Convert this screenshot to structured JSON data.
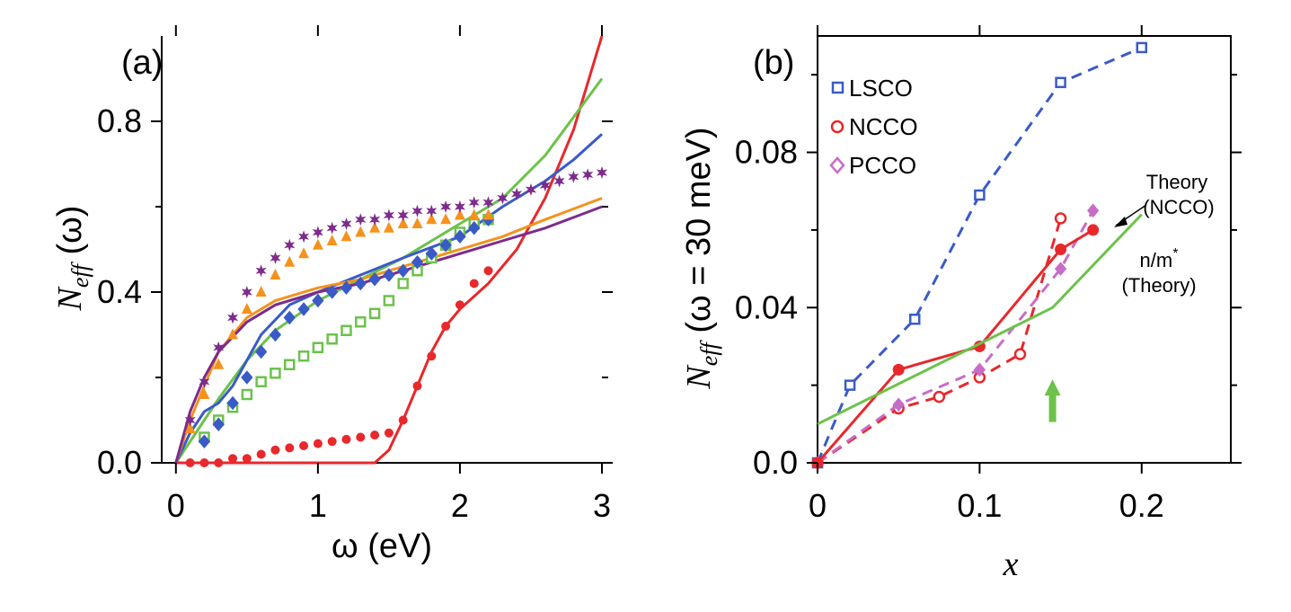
{
  "chart_data": [
    {
      "panel_label": "(a)",
      "type": "line",
      "xlabel": "ω (eV)",
      "ylabel_main": "N",
      "ylabel_sub": "eff",
      "ylabel_arg": " (ω)",
      "xlim": [
        -0.1,
        3.0
      ],
      "ylim": [
        0.0,
        1.0
      ],
      "xticks": [
        0,
        1,
        2,
        3
      ],
      "xtick_labels": [
        "0",
        "1",
        "2",
        "3"
      ],
      "yticks": [
        0.0,
        0.4,
        0.8
      ],
      "ytick_labels": [
        "0.0",
        "0.4",
        "0.8"
      ],
      "series": [
        {
          "name": "red-line",
          "kind": "line",
          "color": "#e8282b",
          "x": [
            0.0,
            0.5,
            1.0,
            1.4,
            1.5,
            1.6,
            1.7,
            1.8,
            1.9,
            2.0,
            2.2,
            2.4,
            2.6,
            2.8,
            3.0
          ],
          "y": [
            0.0,
            0.0,
            0.0,
            0.0,
            0.03,
            0.1,
            0.18,
            0.26,
            0.32,
            0.36,
            0.42,
            0.5,
            0.62,
            0.78,
            1.0
          ]
        },
        {
          "name": "green-line",
          "kind": "line",
          "color": "#6cc24a",
          "x": [
            0.0,
            0.1,
            0.2,
            0.3,
            0.5,
            0.7,
            1.0,
            1.3,
            1.6,
            2.0,
            2.3,
            2.6,
            2.8,
            3.0
          ],
          "y": [
            0.0,
            0.05,
            0.1,
            0.15,
            0.24,
            0.31,
            0.38,
            0.43,
            0.48,
            0.56,
            0.62,
            0.72,
            0.81,
            0.9
          ]
        },
        {
          "name": "blue-line",
          "kind": "line",
          "color": "#3a5bc7",
          "x": [
            0.0,
            0.1,
            0.2,
            0.3,
            0.4,
            0.6,
            0.8,
            1.0,
            1.3,
            1.6,
            2.0,
            2.3,
            2.6,
            2.8,
            3.0
          ],
          "y": [
            0.0,
            0.07,
            0.12,
            0.14,
            0.18,
            0.3,
            0.37,
            0.4,
            0.44,
            0.48,
            0.53,
            0.6,
            0.66,
            0.71,
            0.77
          ]
        },
        {
          "name": "orange-line",
          "kind": "line",
          "color": "#f5921e",
          "x": [
            0.0,
            0.1,
            0.2,
            0.3,
            0.5,
            0.7,
            1.0,
            1.3,
            1.6,
            2.0,
            2.3,
            2.6,
            3.0
          ],
          "y": [
            0.0,
            0.1,
            0.18,
            0.26,
            0.34,
            0.38,
            0.41,
            0.43,
            0.46,
            0.5,
            0.53,
            0.57,
            0.62
          ]
        },
        {
          "name": "purple-line",
          "kind": "line",
          "color": "#7d2b8c",
          "x": [
            0.0,
            0.1,
            0.2,
            0.3,
            0.5,
            0.7,
            1.0,
            1.3,
            1.6,
            2.0,
            2.3,
            2.6,
            3.0
          ],
          "y": [
            0.0,
            0.12,
            0.2,
            0.26,
            0.33,
            0.37,
            0.4,
            0.42,
            0.45,
            0.49,
            0.52,
            0.55,
            0.6
          ]
        },
        {
          "name": "red-dots",
          "kind": "points",
          "marker": "circle",
          "color": "#e8282b",
          "x": [
            0.1,
            0.2,
            0.3,
            0.4,
            0.5,
            0.6,
            0.7,
            0.8,
            0.9,
            1.0,
            1.1,
            1.2,
            1.3,
            1.4,
            1.5,
            1.6,
            1.7,
            1.8,
            1.9,
            2.0,
            2.1,
            2.2
          ],
          "y": [
            0.0,
            0.0,
            0.0,
            0.01,
            0.01,
            0.02,
            0.03,
            0.035,
            0.04,
            0.045,
            0.05,
            0.055,
            0.06,
            0.065,
            0.07,
            0.1,
            0.18,
            0.25,
            0.32,
            0.37,
            0.42,
            0.45
          ]
        },
        {
          "name": "green-squares",
          "kind": "points",
          "marker": "square",
          "color": "#6cc24a",
          "x": [
            0.2,
            0.3,
            0.4,
            0.5,
            0.6,
            0.7,
            0.8,
            0.9,
            1.0,
            1.1,
            1.2,
            1.3,
            1.4,
            1.5,
            1.6,
            1.7,
            1.8,
            1.9,
            2.0,
            2.1,
            2.2
          ],
          "y": [
            0.06,
            0.1,
            0.13,
            0.16,
            0.19,
            0.21,
            0.23,
            0.25,
            0.27,
            0.29,
            0.31,
            0.33,
            0.35,
            0.38,
            0.42,
            0.45,
            0.48,
            0.51,
            0.54,
            0.56,
            0.57
          ]
        },
        {
          "name": "blue-diamonds",
          "kind": "points",
          "marker": "diamond",
          "color": "#3a5bc7",
          "x": [
            0.2,
            0.3,
            0.4,
            0.5,
            0.6,
            0.7,
            0.8,
            0.9,
            1.0,
            1.1,
            1.2,
            1.3,
            1.4,
            1.5,
            1.6,
            1.7,
            1.8,
            1.9,
            2.0,
            2.1,
            2.2
          ],
          "y": [
            0.05,
            0.09,
            0.14,
            0.2,
            0.26,
            0.3,
            0.34,
            0.36,
            0.38,
            0.4,
            0.41,
            0.42,
            0.43,
            0.44,
            0.45,
            0.47,
            0.49,
            0.51,
            0.53,
            0.55,
            0.57
          ]
        },
        {
          "name": "orange-triangles",
          "kind": "points",
          "marker": "triangle",
          "color": "#f5921e",
          "x": [
            0.1,
            0.2,
            0.3,
            0.4,
            0.5,
            0.6,
            0.7,
            0.8,
            0.9,
            1.0,
            1.1,
            1.2,
            1.3,
            1.4,
            1.5,
            1.6,
            1.7,
            1.8,
            1.9,
            2.0,
            2.1,
            2.2
          ],
          "y": [
            0.08,
            0.16,
            0.23,
            0.3,
            0.36,
            0.4,
            0.44,
            0.47,
            0.49,
            0.51,
            0.52,
            0.53,
            0.54,
            0.55,
            0.55,
            0.56,
            0.56,
            0.57,
            0.57,
            0.58,
            0.58,
            0.58
          ]
        },
        {
          "name": "purple-stars",
          "kind": "points",
          "marker": "star",
          "color": "#7d2b8c",
          "x": [
            0.1,
            0.2,
            0.3,
            0.4,
            0.5,
            0.6,
            0.7,
            0.8,
            0.9,
            1.0,
            1.1,
            1.2,
            1.3,
            1.4,
            1.5,
            1.6,
            1.7,
            1.8,
            1.9,
            2.0,
            2.1,
            2.2,
            2.3,
            2.4,
            2.5,
            2.6,
            2.7,
            2.8,
            2.9,
            3.0
          ],
          "y": [
            0.1,
            0.19,
            0.27,
            0.34,
            0.4,
            0.45,
            0.48,
            0.51,
            0.53,
            0.54,
            0.55,
            0.56,
            0.57,
            0.57,
            0.58,
            0.58,
            0.59,
            0.59,
            0.6,
            0.6,
            0.61,
            0.61,
            0.62,
            0.63,
            0.64,
            0.65,
            0.66,
            0.67,
            0.675,
            0.68
          ]
        }
      ]
    },
    {
      "panel_label": "(b)",
      "type": "line",
      "xlabel": "x",
      "ylabel_main": "N",
      "ylabel_sub": "eff",
      "ylabel_arg": " (ω = 30 meV)",
      "xlim": [
        0.0,
        0.255
      ],
      "ylim": [
        0.0,
        0.11
      ],
      "xticks": [
        0,
        0.1,
        0.2
      ],
      "xtick_labels": [
        "0",
        "0.1",
        "0.2"
      ],
      "yticks": [
        0.0,
        0.04,
        0.08
      ],
      "ytick_labels": [
        "0.0",
        "0.04",
        "0.08"
      ],
      "legend": [
        {
          "label": "LSCO",
          "marker": "square",
          "color": "#3a5bc7"
        },
        {
          "label": "NCCO",
          "marker": "circle-open",
          "color": "#e8282b"
        },
        {
          "label": "PCCO",
          "marker": "diamond",
          "color": "#c86cc8"
        }
      ],
      "series": [
        {
          "name": "LSCO",
          "kind": "dashed-markers",
          "marker": "square",
          "color": "#3a5bc7",
          "x": [
            0.0,
            0.02,
            0.06,
            0.1,
            0.15,
            0.2
          ],
          "y": [
            0.0,
            0.02,
            0.037,
            0.069,
            0.098,
            0.107
          ]
        },
        {
          "name": "NCCO",
          "kind": "dashed-markers",
          "marker": "circle-open",
          "color": "#e8282b",
          "x": [
            0.0,
            0.05,
            0.075,
            0.1,
            0.125,
            0.15
          ],
          "y": [
            0.0,
            0.014,
            0.017,
            0.022,
            0.028,
            0.063
          ]
        },
        {
          "name": "PCCO",
          "kind": "dashed-markers",
          "marker": "diamond",
          "color": "#c86cc8",
          "x": [
            0.0,
            0.05,
            0.1,
            0.15,
            0.17
          ],
          "y": [
            0.0,
            0.015,
            0.024,
            0.05,
            0.065
          ]
        },
        {
          "name": "Theory (NCCO)",
          "kind": "solid-markers",
          "marker": "circle-filled",
          "color": "#e8282b",
          "x": [
            0.0,
            0.05,
            0.1,
            0.15,
            0.17
          ],
          "y": [
            0.0,
            0.024,
            0.03,
            0.055,
            0.06
          ]
        },
        {
          "name": "n/m* (Theory)",
          "kind": "solid",
          "color": "#6cc24a",
          "x": [
            0.0,
            0.145,
            0.2
          ],
          "y": [
            0.01,
            0.04,
            0.064
          ]
        }
      ],
      "annotations": {
        "theory_ncco_line1": "Theory",
        "theory_ncco_line2": "(NCCO)",
        "nm_line1": "n/m",
        "nm_sup": "*",
        "nm_line2": "(Theory)",
        "arrow_x": 0.145,
        "arrow_color": "#6cc24a"
      }
    }
  ]
}
